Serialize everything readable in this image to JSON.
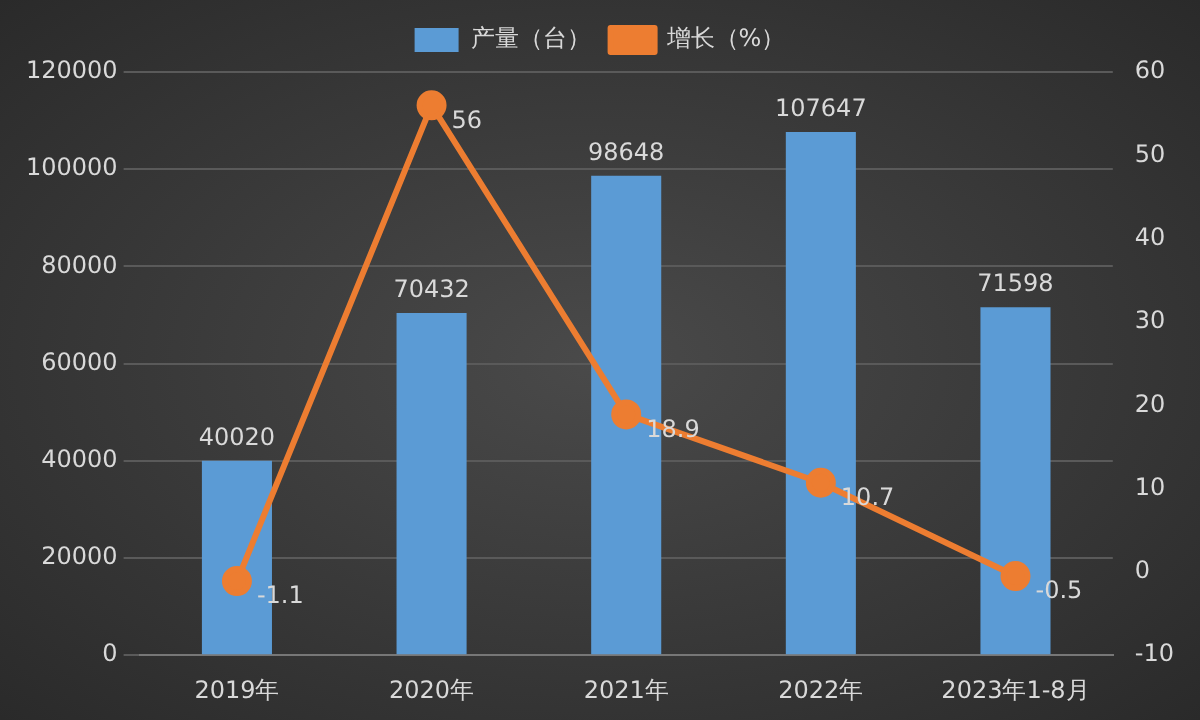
{
  "chart_data": {
    "type": "bar",
    "categories": [
      "2019年",
      "2020年",
      "2021年",
      "2022年",
      "2023年1-8月"
    ],
    "series": [
      {
        "name": "产量（台）",
        "color": "#5b9bd5",
        "values": [
          40020,
          70432,
          98648,
          107647,
          71598
        ]
      },
      {
        "name": "增长（%）",
        "type": "line",
        "axis": "y2",
        "color": "#ed7d31",
        "values": [
          -1.1,
          56,
          18.9,
          10.7,
          -0.5
        ]
      }
    ],
    "ylim": [
      0,
      120000
    ],
    "yticks": [
      0,
      20000,
      40000,
      60000,
      80000,
      100000,
      120000
    ],
    "y2lim": [
      -10,
      60
    ],
    "y2ticks": [
      -10,
      0,
      10,
      20,
      30,
      40,
      50,
      60
    ],
    "grid": "y",
    "legend": "top",
    "marker": "circle",
    "data_labels": true
  }
}
